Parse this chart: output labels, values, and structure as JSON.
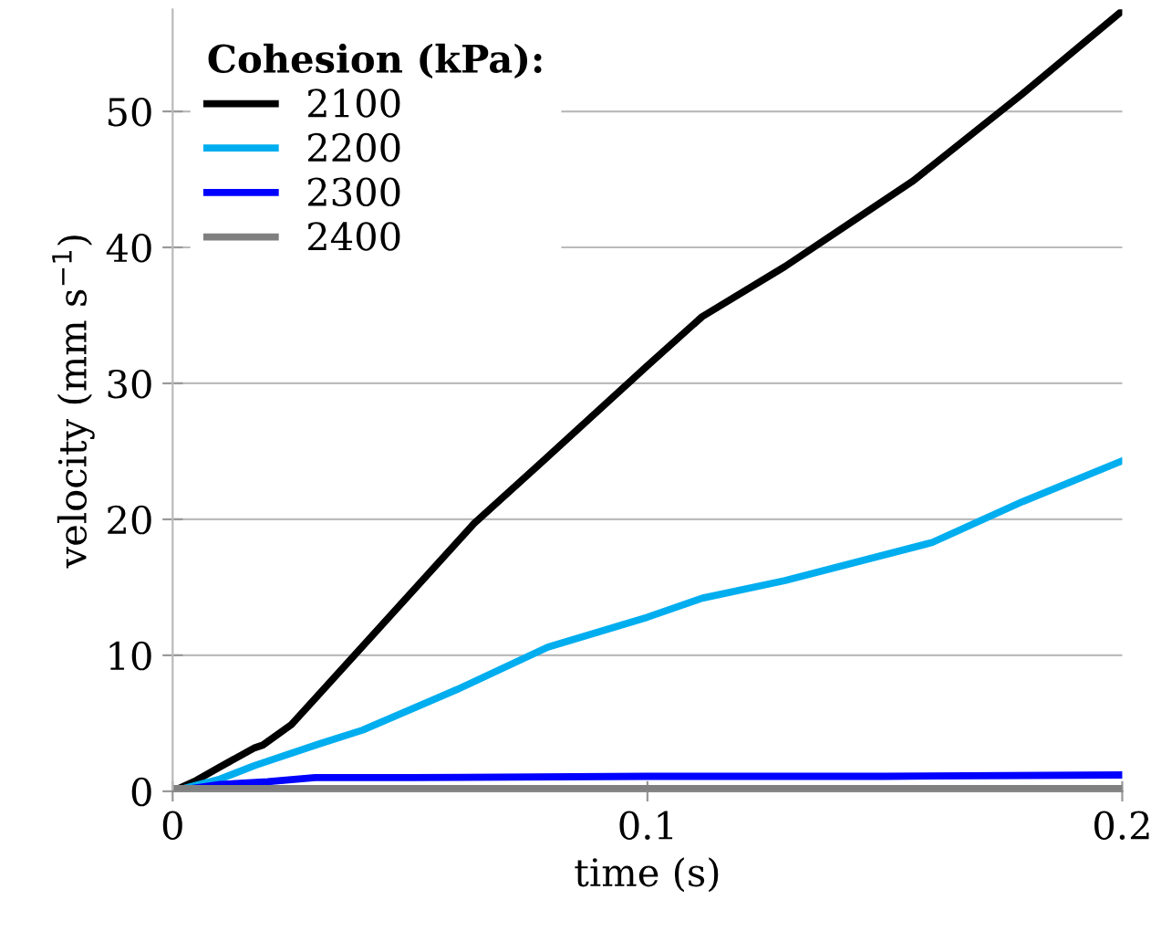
{
  "chart_data": {
    "type": "line",
    "xlabel": "time (s)",
    "ylabel": "velocity (mm s$^{−1}$)",
    "legend_title": "Cohesion (kPa):",
    "legend": "top left",
    "grid": "y",
    "line_style": "solid",
    "marker": "none",
    "xlim": [
      0,
      0.2
    ],
    "xticks": [
      0,
      0.1,
      0.2
    ],
    "ylim": [
      0,
      57.5
    ],
    "yticks": [
      0,
      10,
      20,
      30,
      40,
      50
    ],
    "series": [
      {
        "name": "2100",
        "color": "#000000",
        "x": [
          0,
          0.005,
          0.01,
          0.0173,
          0.019,
          0.025,
          0.031,
          0.044,
          0.0635,
          0.079,
          0.1,
          0.1115,
          0.129,
          0.156,
          0.179,
          0.2
        ],
        "values": [
          0,
          0.8,
          1.8,
          3.2,
          3.4,
          4.9,
          7.2,
          12.2,
          19.7,
          24.6,
          31.3,
          34.9,
          38.6,
          44.9,
          51.3,
          57.4
        ]
      },
      {
        "name": "2200",
        "color": "#00aeef",
        "x": [
          0,
          0.01,
          0.0173,
          0.031,
          0.04,
          0.06,
          0.079,
          0.1,
          0.1115,
          0.129,
          0.16,
          0.179,
          0.2
        ],
        "values": [
          0,
          0.9,
          1.9,
          3.5,
          4.5,
          7.5,
          10.6,
          12.8,
          14.2,
          15.5,
          18.3,
          21.3,
          24.3
        ]
      },
      {
        "name": "2300",
        "color": "#0000ff",
        "x": [
          0,
          0.01,
          0.02,
          0.03,
          0.05,
          0.1,
          0.15,
          0.2
        ],
        "values": [
          0,
          0.5,
          0.7,
          1.0,
          1.0,
          1.1,
          1.1,
          1.2
        ]
      },
      {
        "name": "2400",
        "color": "#808080",
        "x": [
          0,
          0.05,
          0.1,
          0.15,
          0.2
        ],
        "values": [
          0.2,
          0.2,
          0.2,
          0.2,
          0.2
        ]
      }
    ]
  }
}
